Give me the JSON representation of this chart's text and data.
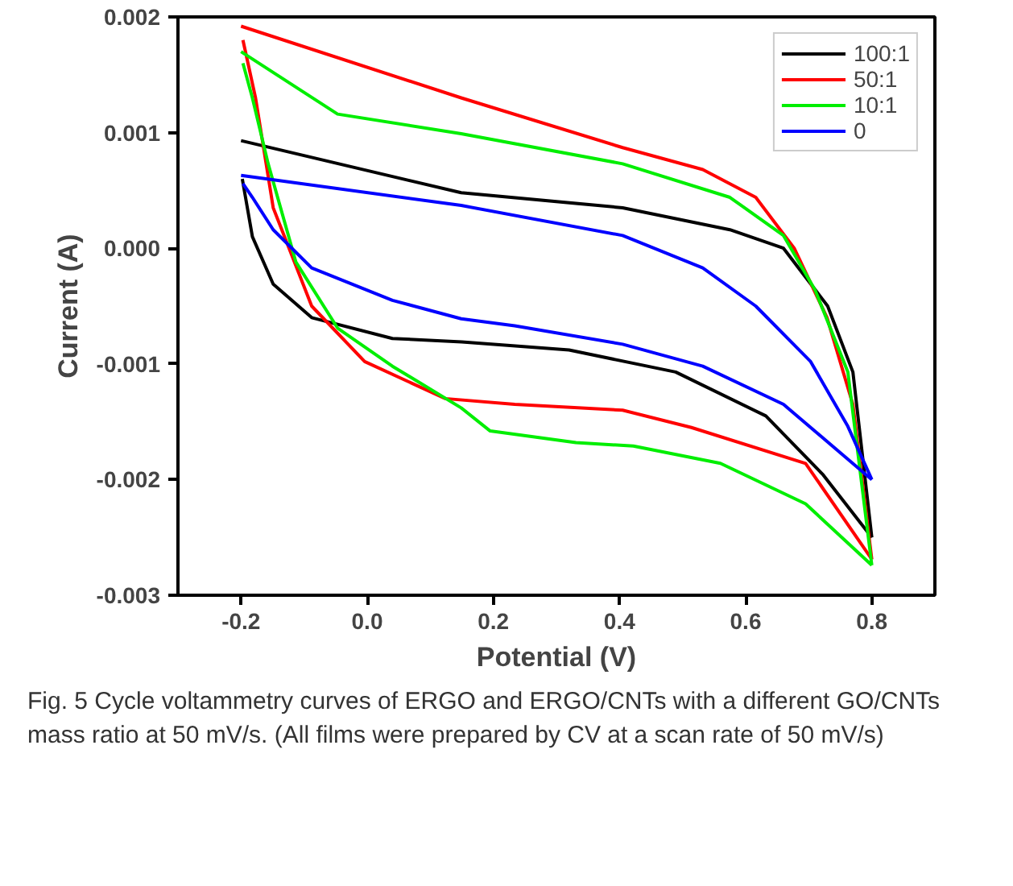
{
  "chart_data": {
    "type": "line",
    "xlabel": "Potential (V)",
    "ylabel": "Current (A)",
    "xlim": [
      -0.3,
      0.9
    ],
    "ylim": [
      -0.003,
      0.002
    ],
    "xticks": [
      {
        "value": -0.2,
        "label": "-0.2"
      },
      {
        "value": 0.0,
        "label": "0.0"
      },
      {
        "value": 0.2,
        "label": "0.2"
      },
      {
        "value": 0.4,
        "label": "0.4"
      },
      {
        "value": 0.6,
        "label": "0.6"
      },
      {
        "value": 0.8,
        "label": "0.8"
      }
    ],
    "yticks": [
      0.002,
      0.001,
      {
        "value": 0.0,
        "label": "0.000"
      },
      -0.001,
      -0.002,
      -0.003
    ],
    "grid": false,
    "legend": "top right",
    "line_style": "solid",
    "marker": "none",
    "series": [
      {
        "name": "100:1",
        "color": "#000000",
        "x": [
          -0.2,
          0.149,
          0.405,
          0.575,
          0.66,
          0.73,
          0.77,
          0.8
        ],
        "values": [
          0.00093,
          0.00048,
          0.00035,
          0.00016,
          0.0,
          -0.0005,
          -0.00107,
          -0.0025
        ]
      },
      {
        "color": "#000000",
        "x": [
          -0.198,
          -0.182,
          -0.149,
          -0.088,
          0.04,
          0.15,
          0.32,
          0.489,
          0.632,
          0.723,
          0.8
        ],
        "values": [
          0.0006,
          0.0001,
          -0.00031,
          -0.0006,
          -0.00078,
          -0.00081,
          -0.00088,
          -0.00107,
          -0.00145,
          -0.00196,
          -0.0025
        ]
      },
      {
        "name": "50:1",
        "color": "#ff0000",
        "x": [
          -0.2,
          0.149,
          0.405,
          0.532,
          0.616,
          0.677,
          0.729,
          0.77,
          0.8
        ],
        "values": [
          0.00192,
          0.0013,
          0.00087,
          0.00068,
          0.00044,
          0.0,
          -0.0006,
          -0.00135,
          -0.00269
        ]
      },
      {
        "color": "#ff0000",
        "x": [
          -0.197,
          -0.177,
          -0.149,
          -0.088,
          -0.004,
          0.124,
          0.234,
          0.405,
          0.514,
          0.695,
          0.8
        ],
        "values": [
          0.0018,
          0.0013,
          0.00035,
          -0.0005,
          -0.00098,
          -0.0013,
          -0.00135,
          -0.0014,
          -0.00155,
          -0.00186,
          -0.00269
        ]
      },
      {
        "name": "10:1",
        "color": "#00ee00",
        "x": [
          -0.2,
          -0.047,
          0.149,
          0.405,
          0.575,
          0.66,
          0.71,
          0.762,
          0.8
        ],
        "values": [
          0.0017,
          0.00116,
          0.00099,
          0.00073,
          0.00044,
          0.00011,
          -0.00036,
          -0.00107,
          -0.00274
        ]
      },
      {
        "color": "#00ee00",
        "x": [
          -0.197,
          -0.182,
          -0.157,
          -0.113,
          -0.047,
          0.04,
          0.149,
          0.195,
          0.331,
          0.422,
          0.56,
          0.695,
          0.8
        ],
        "values": [
          0.0016,
          0.0013,
          0.00073,
          -0.00012,
          -0.00069,
          -0.00102,
          -0.00138,
          -0.00158,
          -0.00168,
          -0.00171,
          -0.00186,
          -0.00221,
          -0.00274
        ]
      },
      {
        "name": "0",
        "color": "#0000ff",
        "x": [
          -0.2,
          0.149,
          0.405,
          0.532,
          0.616,
          0.703,
          0.762,
          0.8
        ],
        "values": [
          0.00063,
          0.00037,
          0.00011,
          -0.00017,
          -0.0005,
          -0.00098,
          -0.00154,
          -0.002
        ]
      },
      {
        "color": "#0000ff",
        "x": [
          -0.197,
          -0.182,
          -0.149,
          -0.088,
          0.04,
          0.149,
          0.234,
          0.405,
          0.532,
          0.66,
          0.8
        ],
        "values": [
          0.00056,
          0.00044,
          0.00016,
          -0.00017,
          -0.00045,
          -0.00061,
          -0.00067,
          -0.00083,
          -0.00102,
          -0.00135,
          -0.002
        ]
      }
    ],
    "annotations": [
      "Fig. 5 Cycle voltammetry curves of ERGO and ERGO/CNTs with a different GO/CNTs mass ratio at 50 mV/s. (All films were prepared by CV at a scan rate of 50 mV/s)"
    ]
  }
}
